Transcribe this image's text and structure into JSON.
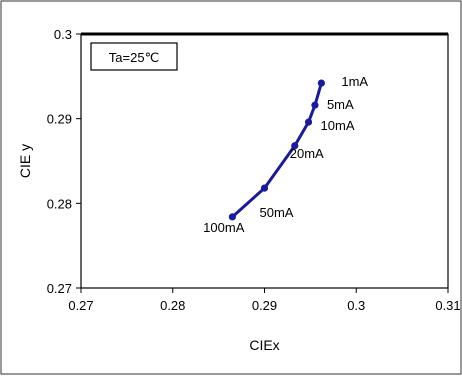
{
  "chart_data": {
    "type": "line",
    "xlabel": "CIEx",
    "ylabel": "CIE y",
    "xlim": [
      0.27,
      0.31
    ],
    "ylim": [
      0.27,
      0.3
    ],
    "x_ticks": [
      0.27,
      0.28,
      0.29,
      0.3,
      0.31
    ],
    "x_tick_labels": [
      "0.27",
      "0.28",
      "0.29",
      "0.3",
      "0.31"
    ],
    "y_ticks": [
      0.27,
      0.28,
      0.29,
      0.3
    ],
    "y_tick_labels": [
      "0.27",
      "0.28",
      "0.29",
      "0.3"
    ],
    "annotation_box": "Ta=25℃",
    "grid": false,
    "series_color": "#1a1a9c",
    "points": [
      {
        "x": 0.2962,
        "y": 0.2942,
        "label": "1mA"
      },
      {
        "x": 0.2955,
        "y": 0.2916,
        "label": "5mA"
      },
      {
        "x": 0.2948,
        "y": 0.2896,
        "label": "10mA"
      },
      {
        "x": 0.2933,
        "y": 0.2868,
        "label": "20mA"
      },
      {
        "x": 0.29,
        "y": 0.2818,
        "label": "50mA"
      },
      {
        "x": 0.2865,
        "y": 0.2784,
        "label": "100mA"
      }
    ]
  }
}
